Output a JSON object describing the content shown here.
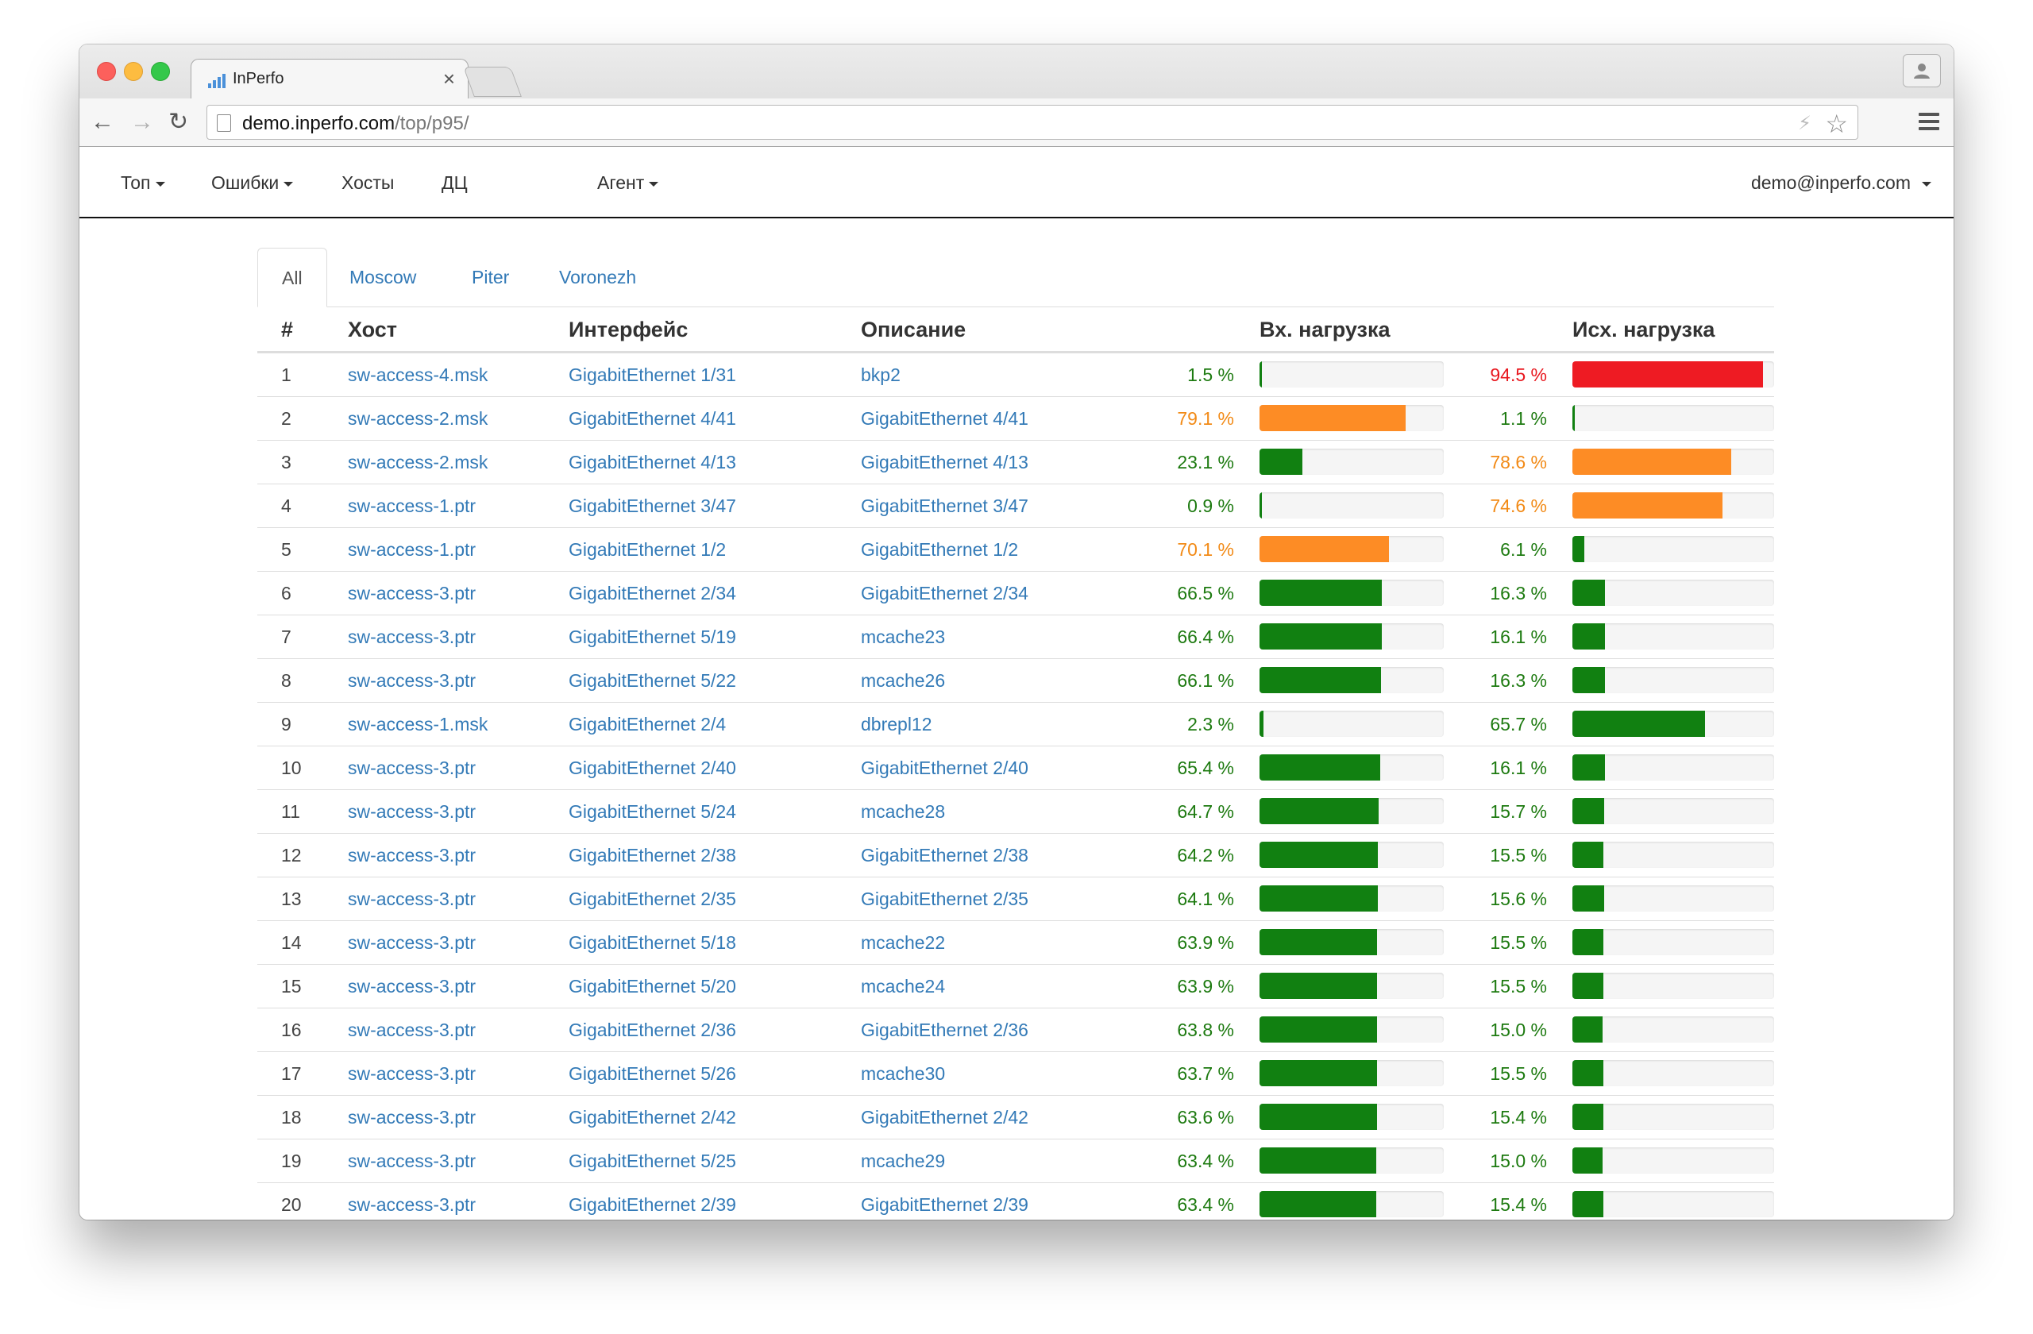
{
  "browser": {
    "tab_title": "InPerfo",
    "tab_close": "×",
    "url_host": "demo.inperfo.com",
    "url_path": "/top/p95/"
  },
  "nav": {
    "items": [
      {
        "label": "Топ",
        "dropdown": true
      },
      {
        "label": "Ошибки",
        "dropdown": true
      },
      {
        "label": "Хосты",
        "dropdown": false
      },
      {
        "label": "ДЦ",
        "dropdown": false
      },
      {
        "label": "Агент",
        "dropdown": true
      }
    ],
    "user": "demo@inperfo.com"
  },
  "tabs": [
    {
      "label": "All",
      "active": true
    },
    {
      "label": "Moscow",
      "active": false
    },
    {
      "label": "Piter",
      "active": false
    },
    {
      "label": "Voronezh",
      "active": false
    }
  ],
  "table": {
    "headers": {
      "num": "#",
      "host": "Хост",
      "iface": "Интерфейс",
      "desc": "Описание",
      "in": "Вх. нагрузка",
      "out": "Исх. нагрузка"
    },
    "colors": {
      "green": "#118011",
      "orange": "#fd8c25",
      "red": "#ee1b23"
    },
    "rows": [
      {
        "num": "1",
        "host": "sw-access-4.msk",
        "iface": "GigabitEthernet 1/31",
        "desc": "bkp2",
        "in_label": "1.5 %",
        "in": 1.5,
        "out_label": "94.5 %",
        "out": 94.5
      },
      {
        "num": "2",
        "host": "sw-access-2.msk",
        "iface": "GigabitEthernet 4/41",
        "desc": "GigabitEthernet 4/41",
        "in_label": "79.1 %",
        "in": 79.1,
        "out_label": "1.1 %",
        "out": 1.1
      },
      {
        "num": "3",
        "host": "sw-access-2.msk",
        "iface": "GigabitEthernet 4/13",
        "desc": "GigabitEthernet 4/13",
        "in_label": "23.1 %",
        "in": 23.1,
        "out_label": "78.6 %",
        "out": 78.6
      },
      {
        "num": "4",
        "host": "sw-access-1.ptr",
        "iface": "GigabitEthernet 3/47",
        "desc": "GigabitEthernet 3/47",
        "in_label": "0.9 %",
        "in": 0.9,
        "out_label": "74.6 %",
        "out": 74.6
      },
      {
        "num": "5",
        "host": "sw-access-1.ptr",
        "iface": "GigabitEthernet 1/2",
        "desc": "GigabitEthernet 1/2",
        "in_label": "70.1 %",
        "in": 70.1,
        "out_label": "6.1 %",
        "out": 6.1
      },
      {
        "num": "6",
        "host": "sw-access-3.ptr",
        "iface": "GigabitEthernet 2/34",
        "desc": "GigabitEthernet 2/34",
        "in_label": "66.5 %",
        "in": 66.5,
        "out_label": "16.3 %",
        "out": 16.3
      },
      {
        "num": "7",
        "host": "sw-access-3.ptr",
        "iface": "GigabitEthernet 5/19",
        "desc": "mcache23",
        "in_label": "66.4 %",
        "in": 66.4,
        "out_label": "16.1 %",
        "out": 16.1
      },
      {
        "num": "8",
        "host": "sw-access-3.ptr",
        "iface": "GigabitEthernet 5/22",
        "desc": "mcache26",
        "in_label": "66.1 %",
        "in": 66.1,
        "out_label": "16.3 %",
        "out": 16.3
      },
      {
        "num": "9",
        "host": "sw-access-1.msk",
        "iface": "GigabitEthernet 2/4",
        "desc": "dbrepl12",
        "in_label": "2.3 %",
        "in": 2.3,
        "out_label": "65.7 %",
        "out": 65.7
      },
      {
        "num": "10",
        "host": "sw-access-3.ptr",
        "iface": "GigabitEthernet 2/40",
        "desc": "GigabitEthernet 2/40",
        "in_label": "65.4 %",
        "in": 65.4,
        "out_label": "16.1 %",
        "out": 16.1
      },
      {
        "num": "11",
        "host": "sw-access-3.ptr",
        "iface": "GigabitEthernet 5/24",
        "desc": "mcache28",
        "in_label": "64.7 %",
        "in": 64.7,
        "out_label": "15.7 %",
        "out": 15.7
      },
      {
        "num": "12",
        "host": "sw-access-3.ptr",
        "iface": "GigabitEthernet 2/38",
        "desc": "GigabitEthernet 2/38",
        "in_label": "64.2 %",
        "in": 64.2,
        "out_label": "15.5 %",
        "out": 15.5
      },
      {
        "num": "13",
        "host": "sw-access-3.ptr",
        "iface": "GigabitEthernet 2/35",
        "desc": "GigabitEthernet 2/35",
        "in_label": "64.1 %",
        "in": 64.1,
        "out_label": "15.6 %",
        "out": 15.6
      },
      {
        "num": "14",
        "host": "sw-access-3.ptr",
        "iface": "GigabitEthernet 5/18",
        "desc": "mcache22",
        "in_label": "63.9 %",
        "in": 63.9,
        "out_label": "15.5 %",
        "out": 15.5
      },
      {
        "num": "15",
        "host": "sw-access-3.ptr",
        "iface": "GigabitEthernet 5/20",
        "desc": "mcache24",
        "in_label": "63.9 %",
        "in": 63.9,
        "out_label": "15.5 %",
        "out": 15.5
      },
      {
        "num": "16",
        "host": "sw-access-3.ptr",
        "iface": "GigabitEthernet 2/36",
        "desc": "GigabitEthernet 2/36",
        "in_label": "63.8 %",
        "in": 63.8,
        "out_label": "15.0 %",
        "out": 15.0
      },
      {
        "num": "17",
        "host": "sw-access-3.ptr",
        "iface": "GigabitEthernet 5/26",
        "desc": "mcache30",
        "in_label": "63.7 %",
        "in": 63.7,
        "out_label": "15.5 %",
        "out": 15.5
      },
      {
        "num": "18",
        "host": "sw-access-3.ptr",
        "iface": "GigabitEthernet 2/42",
        "desc": "GigabitEthernet 2/42",
        "in_label": "63.6 %",
        "in": 63.6,
        "out_label": "15.4 %",
        "out": 15.4
      },
      {
        "num": "19",
        "host": "sw-access-3.ptr",
        "iface": "GigabitEthernet 5/25",
        "desc": "mcache29",
        "in_label": "63.4 %",
        "in": 63.4,
        "out_label": "15.0 %",
        "out": 15.0
      },
      {
        "num": "20",
        "host": "sw-access-3.ptr",
        "iface": "GigabitEthernet 2/39",
        "desc": "GigabitEthernet 2/39",
        "in_label": "63.4 %",
        "in": 63.4,
        "out_label": "15.4 %",
        "out": 15.4
      }
    ]
  }
}
